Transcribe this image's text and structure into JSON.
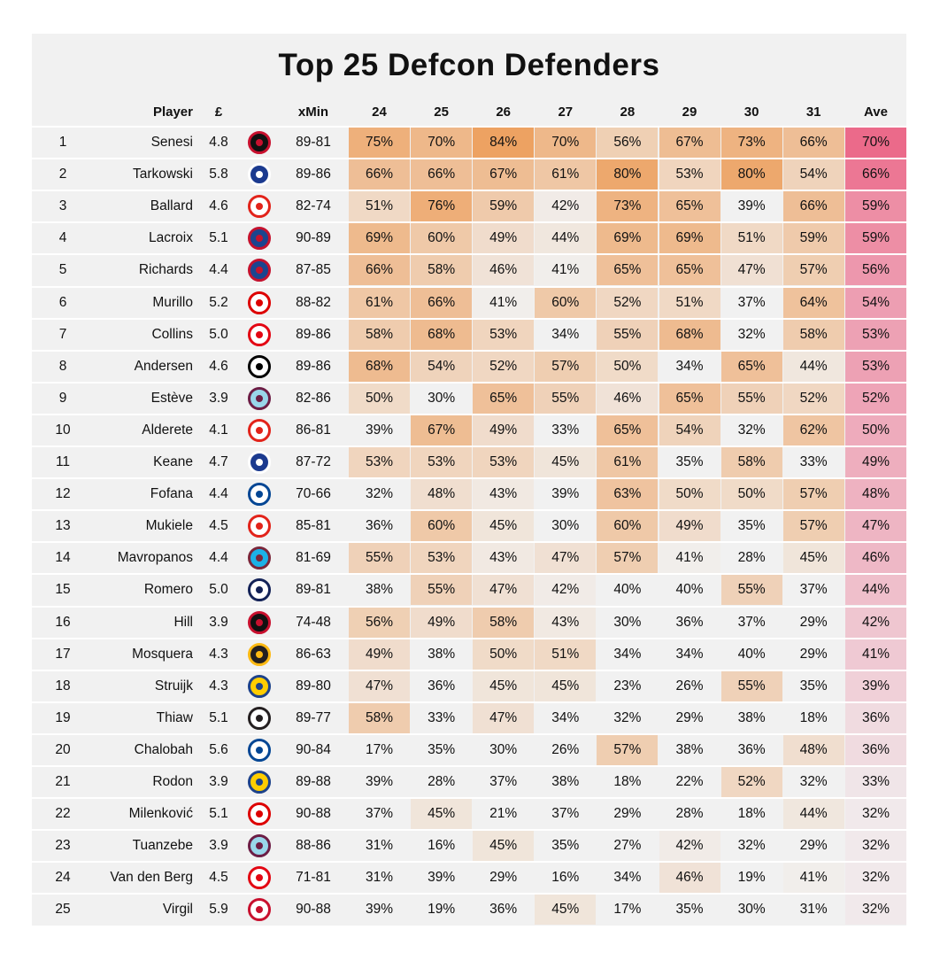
{
  "title": "Top 25 Defcon Defenders",
  "chart_data": {
    "type": "table",
    "title": "Top 25 Defcon Defenders",
    "columns": [
      "Player",
      "£",
      "xMin",
      "24",
      "25",
      "26",
      "27",
      "28",
      "29",
      "30",
      "31",
      "Ave"
    ],
    "gameweeks": [
      "24",
      "25",
      "26",
      "27",
      "28",
      "29",
      "30",
      "31"
    ],
    "rows": [
      {
        "rank": "1",
        "player": "Senesi",
        "price": "4.8",
        "club": "Bournemouth",
        "xmin": "89-81",
        "gw": [
          75,
          70,
          84,
          70,
          56,
          67,
          73,
          66
        ],
        "ave": 70
      },
      {
        "rank": "2",
        "player": "Tarkowski",
        "price": "5.8",
        "club": "Everton",
        "xmin": "89-86",
        "gw": [
          66,
          66,
          67,
          61,
          80,
          53,
          80,
          54
        ],
        "ave": 66
      },
      {
        "rank": "3",
        "player": "Ballard",
        "price": "4.6",
        "club": "Sunderland",
        "xmin": "82-74",
        "gw": [
          51,
          76,
          59,
          42,
          73,
          65,
          39,
          66
        ],
        "ave": 59
      },
      {
        "rank": "4",
        "player": "Lacroix",
        "price": "5.1",
        "club": "Crystal Palace",
        "xmin": "90-89",
        "gw": [
          69,
          60,
          49,
          44,
          69,
          69,
          51,
          59
        ],
        "ave": 59
      },
      {
        "rank": "5",
        "player": "Richards",
        "price": "4.4",
        "club": "Crystal Palace",
        "xmin": "87-85",
        "gw": [
          66,
          58,
          46,
          41,
          65,
          65,
          47,
          57
        ],
        "ave": 56
      },
      {
        "rank": "6",
        "player": "Murillo",
        "price": "5.2",
        "club": "Nottingham Forest",
        "xmin": "88-82",
        "gw": [
          61,
          66,
          41,
          60,
          52,
          51,
          37,
          64
        ],
        "ave": 54
      },
      {
        "rank": "7",
        "player": "Collins",
        "price": "5.0",
        "club": "Brentford",
        "xmin": "89-86",
        "gw": [
          58,
          68,
          53,
          34,
          55,
          68,
          32,
          58
        ],
        "ave": 53
      },
      {
        "rank": "8",
        "player": "Andersen",
        "price": "4.6",
        "club": "Fulham",
        "xmin": "89-86",
        "gw": [
          68,
          54,
          52,
          57,
          50,
          34,
          65,
          44
        ],
        "ave": 53
      },
      {
        "rank": "9",
        "player": "Estève",
        "price": "3.9",
        "club": "Burnley",
        "xmin": "82-86",
        "gw": [
          50,
          30,
          65,
          55,
          46,
          65,
          55,
          52
        ],
        "ave": 52
      },
      {
        "rank": "10",
        "player": "Alderete",
        "price": "4.1",
        "club": "Sunderland",
        "xmin": "86-81",
        "gw": [
          39,
          67,
          49,
          33,
          65,
          54,
          32,
          62
        ],
        "ave": 50
      },
      {
        "rank": "11",
        "player": "Keane",
        "price": "4.7",
        "club": "Everton",
        "xmin": "87-72",
        "gw": [
          53,
          53,
          53,
          45,
          61,
          35,
          58,
          33
        ],
        "ave": 49
      },
      {
        "rank": "12",
        "player": "Fofana",
        "price": "4.4",
        "club": "Chelsea",
        "xmin": "70-66",
        "gw": [
          32,
          48,
          43,
          39,
          63,
          50,
          50,
          57
        ],
        "ave": 48
      },
      {
        "rank": "13",
        "player": "Mukiele",
        "price": "4.5",
        "club": "Sunderland",
        "xmin": "85-81",
        "gw": [
          36,
          60,
          45,
          30,
          60,
          49,
          35,
          57
        ],
        "ave": 47
      },
      {
        "rank": "14",
        "player": "Mavropanos",
        "price": "4.4",
        "club": "West Ham",
        "xmin": "81-69",
        "gw": [
          55,
          53,
          43,
          47,
          57,
          41,
          28,
          45
        ],
        "ave": 46
      },
      {
        "rank": "15",
        "player": "Romero",
        "price": "5.0",
        "club": "Tottenham",
        "xmin": "89-81",
        "gw": [
          38,
          55,
          47,
          42,
          40,
          40,
          55,
          37
        ],
        "ave": 44
      },
      {
        "rank": "16",
        "player": "Hill",
        "price": "3.9",
        "club": "Bournemouth",
        "xmin": "74-48",
        "gw": [
          56,
          49,
          58,
          43,
          30,
          36,
          37,
          29
        ],
        "ave": 42
      },
      {
        "rank": "17",
        "player": "Mosquera",
        "price": "4.3",
        "club": "Wolves",
        "xmin": "86-63",
        "gw": [
          49,
          38,
          50,
          51,
          34,
          34,
          40,
          29
        ],
        "ave": 41
      },
      {
        "rank": "18",
        "player": "Struijk",
        "price": "4.3",
        "club": "Leeds",
        "xmin": "89-80",
        "gw": [
          47,
          36,
          45,
          45,
          23,
          26,
          55,
          35
        ],
        "ave": 39
      },
      {
        "rank": "19",
        "player": "Thiaw",
        "price": "5.1",
        "club": "Newcastle",
        "xmin": "89-77",
        "gw": [
          58,
          33,
          47,
          34,
          32,
          29,
          38,
          18
        ],
        "ave": 36
      },
      {
        "rank": "20",
        "player": "Chalobah",
        "price": "5.6",
        "club": "Chelsea",
        "xmin": "90-84",
        "gw": [
          17,
          35,
          30,
          26,
          57,
          38,
          36,
          48
        ],
        "ave": 36
      },
      {
        "rank": "21",
        "player": "Rodon",
        "price": "3.9",
        "club": "Leeds",
        "xmin": "89-88",
        "gw": [
          39,
          28,
          37,
          38,
          18,
          22,
          52,
          32
        ],
        "ave": 33
      },
      {
        "rank": "22",
        "player": "Milenković",
        "price": "5.1",
        "club": "Nottingham Forest",
        "xmin": "90-88",
        "gw": [
          37,
          45,
          21,
          37,
          29,
          28,
          18,
          44
        ],
        "ave": 32
      },
      {
        "rank": "23",
        "player": "Tuanzebe",
        "price": "3.9",
        "club": "Burnley",
        "xmin": "88-86",
        "gw": [
          31,
          16,
          45,
          35,
          27,
          42,
          32,
          29
        ],
        "ave": 32
      },
      {
        "rank": "24",
        "player": "Van den Berg",
        "price": "4.5",
        "club": "Brentford",
        "xmin": "71-81",
        "gw": [
          31,
          39,
          29,
          16,
          34,
          46,
          19,
          41
        ],
        "ave": 32
      },
      {
        "rank": "25",
        "player": "Virgil",
        "price": "5.9",
        "club": "Liverpool",
        "xmin": "90-88",
        "gw": [
          39,
          19,
          36,
          45,
          17,
          35,
          30,
          31
        ],
        "ave": 32
      }
    ]
  },
  "colors": {
    "card_bg": "#f1f1f1",
    "gw_high": "#eda262",
    "ave_high": "#eb6a8a",
    "text": "#111111"
  },
  "club_logos": {
    "Bournemouth": {
      "fg": "#c8102e",
      "bg": "#111111",
      "icon": "cherries-crest-icon"
    },
    "Everton": {
      "fg": "#ffffff",
      "bg": "#1b3a8f",
      "icon": "everton-crest-icon"
    },
    "Sunderland": {
      "fg": "#e2231a",
      "bg": "#ffffff",
      "icon": "sunderland-crest-icon"
    },
    "Crystal Palace": {
      "fg": "#c4122e",
      "bg": "#1b458f",
      "icon": "eagle-crest-icon"
    },
    "Nottingham Forest": {
      "fg": "#dd0000",
      "bg": "#ffffff",
      "icon": "forest-tree-crest-icon"
    },
    "Brentford": {
      "fg": "#e30613",
      "bg": "#ffffff",
      "icon": "bee-crest-icon"
    },
    "Fulham": {
      "fg": "#000000",
      "bg": "#ffffff",
      "icon": "fulham-crest-icon"
    },
    "Burnley": {
      "fg": "#6c1d45",
      "bg": "#99d6ea",
      "icon": "claret-crest-icon"
    },
    "Chelsea": {
      "fg": "#034694",
      "bg": "#ffffff",
      "icon": "lion-crest-icon"
    },
    "West Ham": {
      "fg": "#7a263a",
      "bg": "#1bb1e7",
      "icon": "hammers-crest-icon"
    },
    "Tottenham": {
      "fg": "#132257",
      "bg": "#ffffff",
      "icon": "cockerel-crest-icon"
    },
    "Wolves": {
      "fg": "#fdb913",
      "bg": "#231f20",
      "icon": "wolf-crest-icon"
    },
    "Leeds": {
      "fg": "#1d428a",
      "bg": "#ffcd00",
      "icon": "leeds-crest-icon"
    },
    "Newcastle": {
      "fg": "#241f20",
      "bg": "#ffffff",
      "icon": "magpie-crest-icon"
    },
    "Liverpool": {
      "fg": "#c8102e",
      "bg": "#ffffff",
      "icon": "liverbird-crest-icon"
    }
  }
}
